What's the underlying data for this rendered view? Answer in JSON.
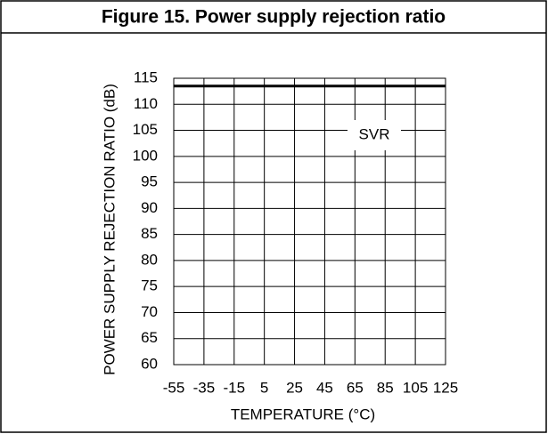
{
  "chart_data": {
    "type": "line",
    "title": "Figure 15. Power supply rejection ratio",
    "y_label": "POWER SUPPLY REJECTION RATIO (dB)",
    "x_label": "TEMPERATURE (°C)",
    "x": [
      -55,
      125
    ],
    "series": [
      {
        "name": "SVR",
        "color": "#000000",
        "values": [
          113.5,
          113.5
        ]
      }
    ],
    "xlim": [
      -55,
      125
    ],
    "xticks": [
      -55,
      -35,
      -15,
      5,
      25,
      45,
      65,
      85,
      105,
      125
    ],
    "ylim": [
      60,
      115
    ],
    "yticks": [
      60,
      65,
      70,
      75,
      80,
      85,
      90,
      95,
      100,
      105,
      110,
      115
    ],
    "grid": true
  }
}
